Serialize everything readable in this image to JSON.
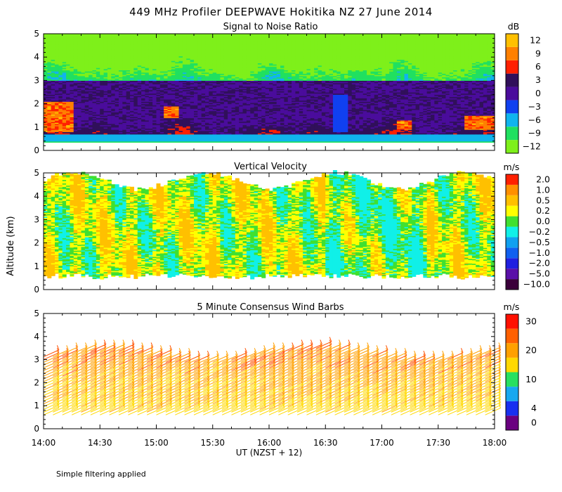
{
  "figure": {
    "title": "449 MHz Profiler DEEPWAVE Hokitika NZ 27 June 2014",
    "ylabel": "Altitude (km)",
    "xlabel": "UT  (NZST + 12)",
    "footnote": "Simple filtering applied"
  },
  "chart_data": [
    {
      "type": "heatmap",
      "title": "Signal to Noise Ratio",
      "colorbar_unit": "dB",
      "xlim": [
        0,
        240
      ],
      "ylim": [
        0,
        5
      ],
      "x_ticks": [
        "14:00",
        "14:30",
        "15:00",
        "15:30",
        "16:00",
        "16:30",
        "17:00",
        "17:30",
        "18:00"
      ],
      "y_ticks": [
        "0",
        "1",
        "2",
        "3",
        "4",
        "5"
      ],
      "colorbar": [
        {
          "label": "−12",
          "color": "#7ef01a"
        },
        {
          "label": "−9",
          "color": "#20e060"
        },
        {
          "label": "−6",
          "color": "#10b4ee"
        },
        {
          "label": "−3",
          "color": "#1040f0"
        },
        {
          "label": "0",
          "color": "#4a0c9c"
        },
        {
          "label": "3",
          "color": "#30105a"
        },
        {
          "label": "6",
          "color": "#ff2000"
        },
        {
          "label": "9",
          "color": "#ff8000"
        },
        {
          "label": "12",
          "color": "#ffc000"
        }
      ]
    },
    {
      "type": "heatmap",
      "title": "Vertical Velocity",
      "colorbar_unit": "m/s",
      "xlim": [
        0,
        240
      ],
      "ylim": [
        0,
        5
      ],
      "y_ticks": [
        "0",
        "1",
        "2",
        "3",
        "4",
        "5"
      ],
      "colorbar": [
        {
          "label": "−10.0",
          "color": "#3a003a"
        },
        {
          "label": "−5.0",
          "color": "#5a10a8"
        },
        {
          "label": "−2.0",
          "color": "#2020e0"
        },
        {
          "label": "−1.0",
          "color": "#1060f0"
        },
        {
          "label": "−0.5",
          "color": "#10a0f0"
        },
        {
          "label": "−0.2",
          "color": "#10f0e8"
        },
        {
          "label": "0.0",
          "color": "#40e030"
        },
        {
          "label": "0.2",
          "color": "#ffff00"
        },
        {
          "label": "0.5",
          "color": "#ffc000"
        },
        {
          "label": "1.0",
          "color": "#ff9000"
        },
        {
          "label": "2.0",
          "color": "#ff2000"
        }
      ]
    },
    {
      "type": "scatter",
      "title": "5 Minute Consensus Wind Barbs",
      "colorbar_unit": "m/s",
      "xlim": [
        0,
        240
      ],
      "ylim": [
        0,
        5
      ],
      "y_ticks": [
        "0",
        "1",
        "2",
        "3",
        "4",
        "5"
      ],
      "colorbar": [
        {
          "label": "0",
          "color": "#6a0080"
        },
        {
          "label": "4",
          "color": "#1830f0"
        },
        {
          "label": "",
          "color": "#18a8f0"
        },
        {
          "label": "10",
          "color": "#28e060"
        },
        {
          "label": "",
          "color": "#ffd800"
        },
        {
          "label": "20",
          "color": "#ffa000"
        },
        {
          "label": "",
          "color": "#ff6000"
        },
        {
          "label": "30",
          "color": "#ff1000"
        }
      ]
    }
  ]
}
